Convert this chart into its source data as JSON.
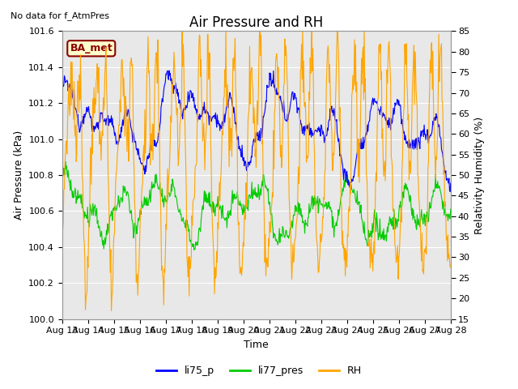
{
  "title": "Air Pressure and RH",
  "top_left_text": "No data for f_AtmPres",
  "box_label": "BA_met",
  "xlabel": "Time",
  "ylabel_left": "Air Pressure (kPa)",
  "ylabel_right": "Relativity Humidity (%)",
  "ylim_left": [
    100.0,
    101.6
  ],
  "ylim_right": [
    15,
    85
  ],
  "yticks_left": [
    100.0,
    100.2,
    100.4,
    100.6,
    100.8,
    101.0,
    101.2,
    101.4,
    101.6
  ],
  "yticks_right": [
    15,
    20,
    25,
    30,
    35,
    40,
    45,
    50,
    55,
    60,
    65,
    70,
    75,
    80,
    85
  ],
  "xtick_labels": [
    "Aug 13",
    "Aug 14",
    "Aug 15",
    "Aug 16",
    "Aug 17",
    "Aug 18",
    "Aug 19",
    "Aug 20",
    "Aug 21",
    "Aug 22",
    "Aug 23",
    "Aug 24",
    "Aug 25",
    "Aug 26",
    "Aug 27",
    "Aug 28"
  ],
  "color_blue": "#0000FF",
  "color_green": "#00CC00",
  "color_orange": "#FFA500",
  "legend_labels": [
    "li75_p",
    "li77_pres",
    "RH"
  ],
  "bg_color": "#E8E8E8",
  "title_fontsize": 12,
  "label_fontsize": 9,
  "tick_fontsize": 8,
  "n_points": 720,
  "box_facecolor": "#FFFFCC",
  "box_edgecolor": "#8B0000",
  "box_textcolor": "#8B0000"
}
